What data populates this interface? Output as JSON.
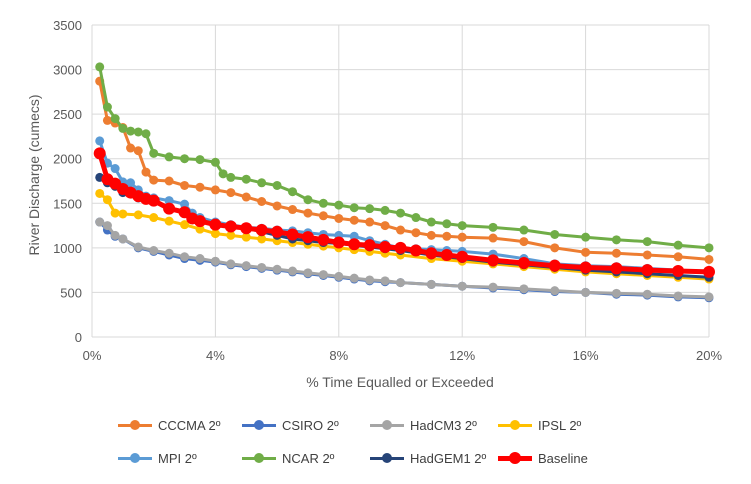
{
  "chart_data": {
    "type": "line",
    "title": "",
    "xlabel": "% Time Equalled or Exceeded",
    "ylabel": "River Discharge (cumecs)",
    "xlim": [
      0,
      20
    ],
    "ylim": [
      0,
      3500
    ],
    "x_ticks": [
      "0%",
      "4%",
      "8%",
      "12%",
      "16%",
      "20%"
    ],
    "y_ticks": [
      "0",
      "500",
      "1000",
      "1500",
      "2000",
      "2500",
      "3000",
      "3500"
    ],
    "grid": true,
    "legend_position": "bottom",
    "series": [
      {
        "name": "CCCMA 2º",
        "color": "#ED7D31",
        "points": [
          [
            0.25,
            2870
          ],
          [
            0.5,
            2430
          ],
          [
            0.75,
            2400
          ],
          [
            1.0,
            2350
          ],
          [
            1.25,
            2120
          ],
          [
            1.5,
            2090
          ],
          [
            1.75,
            1850
          ],
          [
            2.0,
            1760
          ],
          [
            2.5,
            1750
          ],
          [
            3.0,
            1700
          ],
          [
            3.5,
            1680
          ],
          [
            4.0,
            1650
          ],
          [
            4.5,
            1620
          ],
          [
            5.0,
            1570
          ],
          [
            5.5,
            1520
          ],
          [
            6.0,
            1470
          ],
          [
            6.5,
            1430
          ],
          [
            7.0,
            1390
          ],
          [
            7.5,
            1360
          ],
          [
            8.0,
            1330
          ],
          [
            8.5,
            1310
          ],
          [
            9.0,
            1290
          ],
          [
            9.5,
            1250
          ],
          [
            10.0,
            1200
          ],
          [
            10.5,
            1170
          ],
          [
            11.0,
            1140
          ],
          [
            11.5,
            1130
          ],
          [
            12.0,
            1120
          ],
          [
            13.0,
            1110
          ],
          [
            14.0,
            1070
          ],
          [
            15.0,
            1000
          ],
          [
            16.0,
            950
          ],
          [
            17.0,
            940
          ],
          [
            18.0,
            920
          ],
          [
            19.0,
            900
          ],
          [
            20.0,
            870
          ]
        ]
      },
      {
        "name": "CSIRO 2º",
        "color": "#4472C4",
        "points": [
          [
            0.25,
            1290
          ],
          [
            0.5,
            1200
          ],
          [
            0.75,
            1130
          ],
          [
            1.0,
            1100
          ],
          [
            1.5,
            1000
          ],
          [
            2.0,
            960
          ],
          [
            2.5,
            920
          ],
          [
            3.0,
            880
          ],
          [
            3.5,
            860
          ],
          [
            4.0,
            840
          ],
          [
            4.5,
            810
          ],
          [
            5.0,
            790
          ],
          [
            5.5,
            770
          ],
          [
            6.0,
            750
          ],
          [
            6.5,
            730
          ],
          [
            7.0,
            710
          ],
          [
            7.5,
            690
          ],
          [
            8.0,
            670
          ],
          [
            8.5,
            650
          ],
          [
            9.0,
            630
          ],
          [
            9.5,
            620
          ],
          [
            10.0,
            610
          ],
          [
            11.0,
            590
          ],
          [
            12.0,
            570
          ],
          [
            13.0,
            550
          ],
          [
            14.0,
            530
          ],
          [
            15.0,
            510
          ],
          [
            16.0,
            500
          ],
          [
            17.0,
            480
          ],
          [
            18.0,
            470
          ],
          [
            19.0,
            450
          ],
          [
            20.0,
            440
          ]
        ]
      },
      {
        "name": "HadCM3 2º",
        "color": "#A5A5A5",
        "points": [
          [
            0.25,
            1290
          ],
          [
            0.5,
            1250
          ],
          [
            0.75,
            1140
          ],
          [
            1.0,
            1100
          ],
          [
            1.5,
            1010
          ],
          [
            2.0,
            970
          ],
          [
            2.5,
            940
          ],
          [
            3.0,
            900
          ],
          [
            3.5,
            880
          ],
          [
            4.0,
            850
          ],
          [
            4.5,
            820
          ],
          [
            5.0,
            800
          ],
          [
            5.5,
            780
          ],
          [
            6.0,
            760
          ],
          [
            6.5,
            740
          ],
          [
            7.0,
            720
          ],
          [
            7.5,
            700
          ],
          [
            8.0,
            680
          ],
          [
            8.5,
            660
          ],
          [
            9.0,
            640
          ],
          [
            9.5,
            630
          ],
          [
            10.0,
            610
          ],
          [
            11.0,
            590
          ],
          [
            12.0,
            570
          ],
          [
            13.0,
            560
          ],
          [
            14.0,
            540
          ],
          [
            15.0,
            520
          ],
          [
            16.0,
            500
          ],
          [
            17.0,
            490
          ],
          [
            18.0,
            480
          ],
          [
            19.0,
            460
          ],
          [
            20.0,
            450
          ]
        ]
      },
      {
        "name": "IPSL 2º",
        "color": "#FFC000",
        "points": [
          [
            0.25,
            1610
          ],
          [
            0.5,
            1540
          ],
          [
            0.75,
            1390
          ],
          [
            1.0,
            1380
          ],
          [
            1.5,
            1370
          ],
          [
            2.0,
            1340
          ],
          [
            2.5,
            1300
          ],
          [
            3.0,
            1260
          ],
          [
            3.5,
            1210
          ],
          [
            4.0,
            1160
          ],
          [
            4.5,
            1140
          ],
          [
            5.0,
            1120
          ],
          [
            5.5,
            1100
          ],
          [
            6.0,
            1080
          ],
          [
            6.5,
            1060
          ],
          [
            7.0,
            1040
          ],
          [
            7.5,
            1020
          ],
          [
            8.0,
            1000
          ],
          [
            8.5,
            980
          ],
          [
            9.0,
            960
          ],
          [
            9.5,
            940
          ],
          [
            10.0,
            920
          ],
          [
            11.0,
            880
          ],
          [
            12.0,
            850
          ],
          [
            13.0,
            820
          ],
          [
            14.0,
            790
          ],
          [
            15.0,
            760
          ],
          [
            16.0,
            730
          ],
          [
            17.0,
            710
          ],
          [
            18.0,
            690
          ],
          [
            19.0,
            670
          ],
          [
            20.0,
            650
          ]
        ]
      },
      {
        "name": "MPI  2º",
        "color": "#5B9BD5",
        "points": [
          [
            0.25,
            2200
          ],
          [
            0.5,
            1950
          ],
          [
            0.75,
            1890
          ],
          [
            1.0,
            1740
          ],
          [
            1.25,
            1730
          ],
          [
            1.5,
            1650
          ],
          [
            1.75,
            1580
          ],
          [
            2.0,
            1560
          ],
          [
            2.5,
            1530
          ],
          [
            3.0,
            1490
          ],
          [
            3.25,
            1390
          ],
          [
            3.5,
            1340
          ],
          [
            4.0,
            1290
          ],
          [
            4.5,
            1260
          ],
          [
            5.0,
            1230
          ],
          [
            5.5,
            1220
          ],
          [
            6.0,
            1200
          ],
          [
            6.5,
            1190
          ],
          [
            7.0,
            1170
          ],
          [
            7.5,
            1150
          ],
          [
            8.0,
            1140
          ],
          [
            8.5,
            1130
          ],
          [
            9.0,
            1080
          ],
          [
            9.5,
            1040
          ],
          [
            10.0,
            1000
          ],
          [
            10.5,
            990
          ],
          [
            11.0,
            980
          ],
          [
            11.5,
            970
          ],
          [
            12.0,
            960
          ],
          [
            13.0,
            930
          ],
          [
            14.0,
            880
          ],
          [
            15.0,
            820
          ],
          [
            16.0,
            800
          ],
          [
            17.0,
            790
          ],
          [
            18.0,
            770
          ],
          [
            19.0,
            750
          ],
          [
            20.0,
            720
          ]
        ]
      },
      {
        "name": "NCAR 2º",
        "color": "#70AD47",
        "points": [
          [
            0.25,
            3030
          ],
          [
            0.5,
            2580
          ],
          [
            0.75,
            2450
          ],
          [
            1.0,
            2340
          ],
          [
            1.25,
            2310
          ],
          [
            1.5,
            2300
          ],
          [
            1.75,
            2280
          ],
          [
            2.0,
            2060
          ],
          [
            2.5,
            2020
          ],
          [
            3.0,
            2000
          ],
          [
            3.5,
            1990
          ],
          [
            4.0,
            1960
          ],
          [
            4.25,
            1830
          ],
          [
            4.5,
            1790
          ],
          [
            5.0,
            1770
          ],
          [
            5.5,
            1730
          ],
          [
            6.0,
            1700
          ],
          [
            6.5,
            1630
          ],
          [
            7.0,
            1540
          ],
          [
            7.5,
            1500
          ],
          [
            8.0,
            1480
          ],
          [
            8.5,
            1450
          ],
          [
            9.0,
            1440
          ],
          [
            9.5,
            1420
          ],
          [
            10.0,
            1390
          ],
          [
            10.5,
            1340
          ],
          [
            11.0,
            1290
          ],
          [
            11.5,
            1270
          ],
          [
            12.0,
            1250
          ],
          [
            13.0,
            1230
          ],
          [
            14.0,
            1200
          ],
          [
            15.0,
            1150
          ],
          [
            16.0,
            1120
          ],
          [
            17.0,
            1090
          ],
          [
            18.0,
            1070
          ],
          [
            19.0,
            1030
          ],
          [
            20.0,
            1000
          ]
        ]
      },
      {
        "name": "HadGEM1 2º",
        "color": "#264478",
        "points": [
          [
            0.25,
            1790
          ],
          [
            0.5,
            1730
          ],
          [
            0.75,
            1690
          ],
          [
            1.0,
            1620
          ],
          [
            1.5,
            1560
          ],
          [
            2.0,
            1520
          ],
          [
            2.5,
            1440
          ],
          [
            3.0,
            1400
          ],
          [
            3.25,
            1320
          ],
          [
            3.5,
            1300
          ],
          [
            4.0,
            1270
          ],
          [
            4.5,
            1240
          ],
          [
            5.0,
            1220
          ],
          [
            5.5,
            1180
          ],
          [
            6.0,
            1140
          ],
          [
            6.5,
            1100
          ],
          [
            7.0,
            1080
          ],
          [
            7.5,
            1060
          ],
          [
            8.0,
            1050
          ],
          [
            8.5,
            1030
          ],
          [
            9.0,
            1010
          ],
          [
            9.5,
            990
          ],
          [
            10.0,
            970
          ],
          [
            11.0,
            920
          ],
          [
            12.0,
            880
          ],
          [
            13.0,
            840
          ],
          [
            14.0,
            810
          ],
          [
            15.0,
            780
          ],
          [
            16.0,
            750
          ],
          [
            17.0,
            730
          ],
          [
            18.0,
            710
          ],
          [
            19.0,
            690
          ],
          [
            20.0,
            670
          ]
        ]
      },
      {
        "name": "Baseline",
        "color": "#FF0000",
        "bold": true,
        "points": [
          [
            0.25,
            2060
          ],
          [
            0.5,
            1770
          ],
          [
            0.75,
            1720
          ],
          [
            1.0,
            1660
          ],
          [
            1.25,
            1620
          ],
          [
            1.5,
            1580
          ],
          [
            1.75,
            1550
          ],
          [
            2.0,
            1530
          ],
          [
            2.5,
            1440
          ],
          [
            3.0,
            1400
          ],
          [
            3.25,
            1330
          ],
          [
            3.5,
            1300
          ],
          [
            4.0,
            1260
          ],
          [
            4.5,
            1240
          ],
          [
            5.0,
            1220
          ],
          [
            5.5,
            1200
          ],
          [
            6.0,
            1180
          ],
          [
            6.5,
            1150
          ],
          [
            7.0,
            1120
          ],
          [
            7.5,
            1090
          ],
          [
            8.0,
            1060
          ],
          [
            8.5,
            1040
          ],
          [
            9.0,
            1030
          ],
          [
            9.5,
            1010
          ],
          [
            10.0,
            1000
          ],
          [
            10.5,
            970
          ],
          [
            11.0,
            940
          ],
          [
            11.5,
            920
          ],
          [
            12.0,
            900
          ],
          [
            13.0,
            860
          ],
          [
            14.0,
            830
          ],
          [
            15.0,
            800
          ],
          [
            16.0,
            780
          ],
          [
            17.0,
            770
          ],
          [
            18.0,
            750
          ],
          [
            19.0,
            740
          ],
          [
            20.0,
            730
          ]
        ]
      }
    ]
  }
}
